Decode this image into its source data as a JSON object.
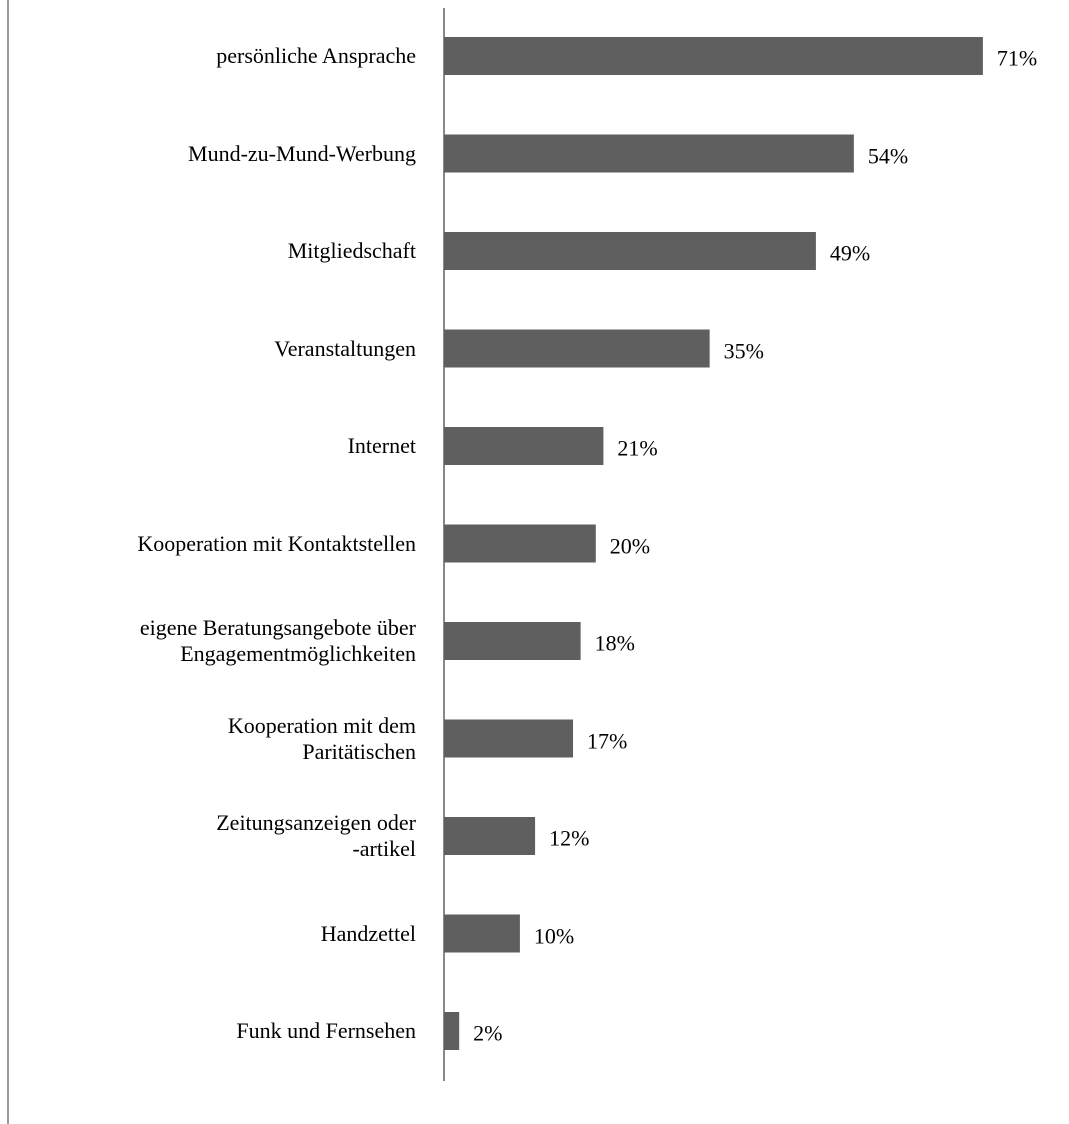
{
  "chart_data": {
    "type": "bar",
    "orientation": "horizontal",
    "categories": [
      "persönliche Ansprache",
      "Mund-zu-Mund-Werbung",
      "Mitgliedschaft",
      "Veranstaltungen",
      "Internet",
      "Kooperation mit Kontaktstellen",
      "eigene Beratungsangebote über\nEngagementmöglichkeiten",
      "Kooperation mit dem\nParitätischen",
      "Zeitungsanzeigen oder\n-artikel",
      "Handzettel",
      "Funk und Fernsehen"
    ],
    "values": [
      71,
      54,
      49,
      35,
      21,
      20,
      18,
      17,
      12,
      10,
      2
    ],
    "value_labels": [
      "71%",
      "54%",
      "49%",
      "35%",
      "21%",
      "20%",
      "18%",
      "17%",
      "12%",
      "10%",
      "2%"
    ],
    "color": "#5f5f5f"
  }
}
